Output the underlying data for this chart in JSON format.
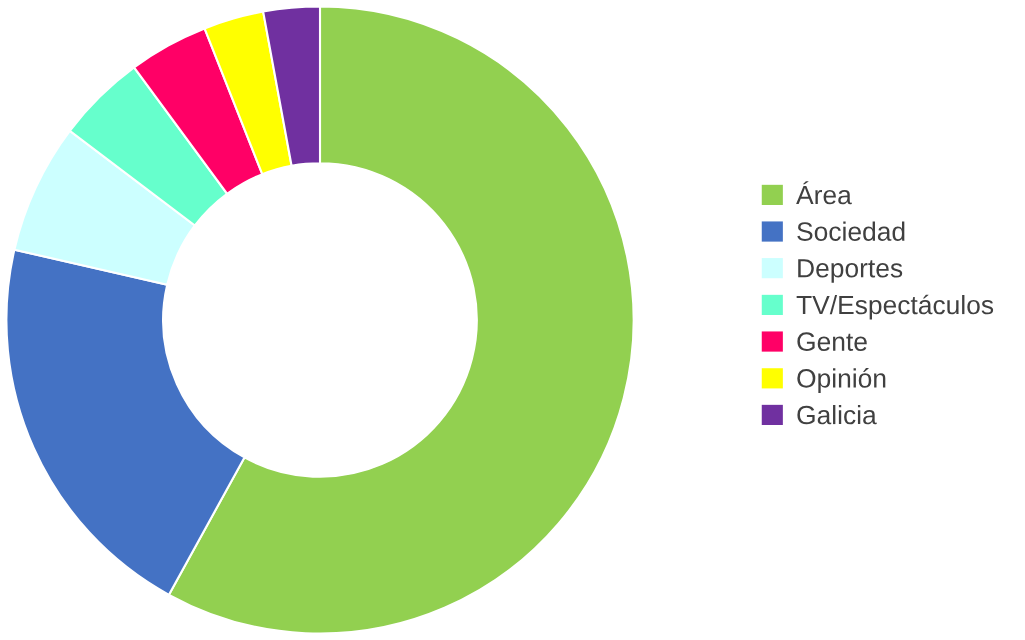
{
  "chart_data": {
    "type": "donut",
    "categories": [
      "Área",
      "Sociedad",
      "Deportes",
      "TV/Espectáculos",
      "Gente",
      "Opinión",
      "Galicia"
    ],
    "values": [
      58,
      20.6,
      6.7,
      4.6,
      4.1,
      3.1,
      2.9
    ],
    "colors": [
      "#92d050",
      "#4472c4",
      "#ccffff",
      "#66ffcc",
      "#ff0066",
      "#ffff00",
      "#7030a0"
    ],
    "legend": "right"
  }
}
